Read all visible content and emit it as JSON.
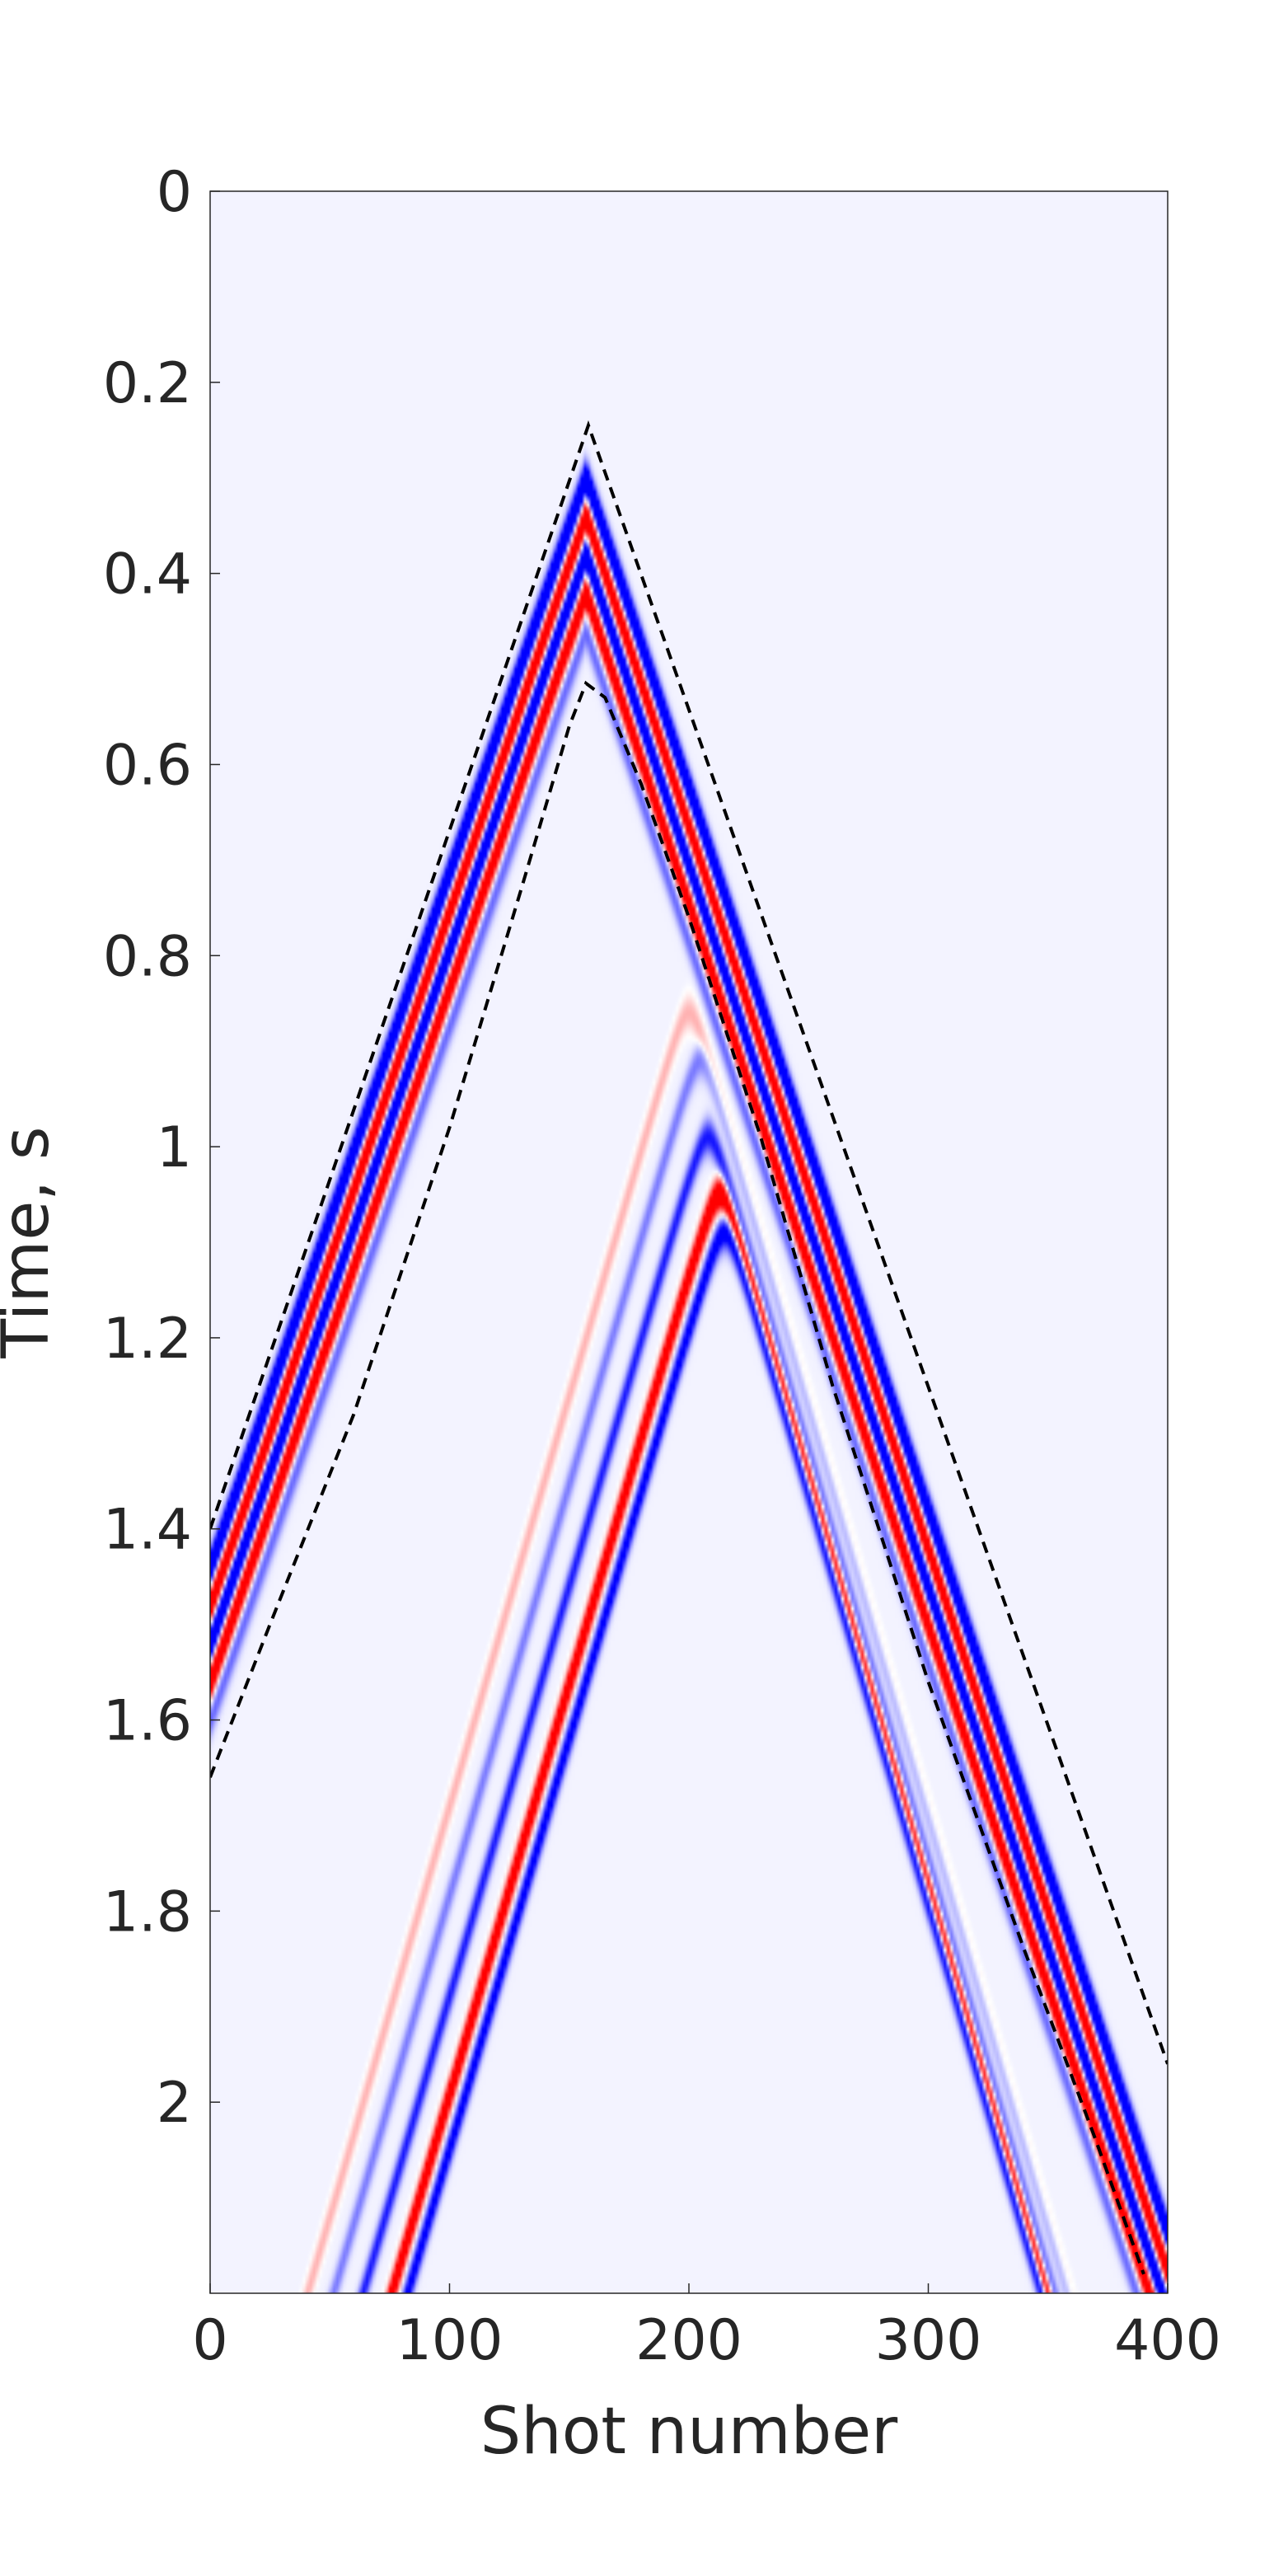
{
  "chart_data": {
    "type": "heatmap",
    "title": "",
    "xlabel": "Shot number",
    "ylabel": "Time, s",
    "xlim": [
      0,
      400
    ],
    "ylim": [
      0,
      2.2
    ],
    "y_axis_inverted": true,
    "x_ticks": [
      0,
      100,
      200,
      300,
      400
    ],
    "x_tick_labels": [
      "0",
      "100",
      "200",
      "300",
      "400"
    ],
    "y_ticks": [
      0,
      0.2,
      0.4,
      0.6,
      0.8,
      1.0,
      1.2,
      1.4,
      1.6,
      1.8,
      2.0
    ],
    "y_tick_labels": [
      "0",
      "0.2",
      "0.4",
      "0.6",
      "0.8",
      "1",
      "1.2",
      "1.4",
      "1.6",
      "1.8",
      "2"
    ],
    "grid": false,
    "legend": "none",
    "colormap": {
      "positive": "#ff0000",
      "negative": "#0000ff",
      "zero": "#ffffff"
    },
    "events": [
      {
        "apex": [
          157,
          0.3
        ],
        "slope_left": 0.00727,
        "slope_right": 0.00756,
        "polarity": "negative",
        "strength": 1.0
      },
      {
        "apex": [
          157,
          0.34
        ],
        "slope_left": 0.00727,
        "slope_right": 0.00756,
        "polarity": "positive",
        "strength": 1.0
      },
      {
        "apex": [
          157,
          0.38
        ],
        "slope_left": 0.00727,
        "slope_right": 0.00756,
        "polarity": "negative",
        "strength": 1.0
      },
      {
        "apex": [
          157,
          0.42
        ],
        "slope_left": 0.00727,
        "slope_right": 0.00756,
        "polarity": "positive",
        "strength": 1.0
      },
      {
        "apex": [
          157,
          0.46
        ],
        "slope_left": 0.00727,
        "slope_right": 0.00756,
        "polarity": "negative",
        "strength": 0.35
      },
      {
        "apex": [
          200,
          0.86
        ],
        "curvature": 2.8e-05,
        "slope_limit": 0.0086,
        "polarity": "positive",
        "strength": 0.22
      },
      {
        "apex": [
          205,
          0.91
        ],
        "curvature": 2.8e-05,
        "slope_limit": 0.0086,
        "polarity": "negative",
        "strength": 0.3
      },
      {
        "apex": [
          208,
          0.99
        ],
        "curvature": 2.8e-05,
        "slope_limit": 0.0086,
        "polarity": "negative",
        "strength": 0.55
      },
      {
        "apex": [
          213,
          1.05
        ],
        "curvature": 2.8e-05,
        "slope_limit": 0.0086,
        "polarity": "positive",
        "strength": 0.95
      },
      {
        "apex": [
          215,
          1.09
        ],
        "curvature": 2.8e-05,
        "slope_limit": 0.0086,
        "polarity": "negative",
        "strength": 0.7
      }
    ],
    "dashed_curves": [
      {
        "name": "upper",
        "points": [
          [
            0,
            1.4
          ],
          [
            158,
            0.245
          ],
          [
            400,
            1.96
          ]
        ]
      },
      {
        "name": "lower",
        "points": [
          [
            0,
            1.66
          ],
          [
            25,
            1.5
          ],
          [
            60,
            1.28
          ],
          [
            100,
            0.98
          ],
          [
            130,
            0.73
          ],
          [
            150,
            0.56
          ],
          [
            157,
            0.515
          ],
          [
            165,
            0.53
          ],
          [
            180,
            0.62
          ],
          [
            200,
            0.76
          ],
          [
            230,
            0.99
          ],
          [
            260,
            1.25
          ],
          [
            300,
            1.56
          ],
          [
            340,
            1.84
          ],
          [
            370,
            2.04
          ],
          [
            390,
            2.18
          ]
        ]
      }
    ]
  }
}
